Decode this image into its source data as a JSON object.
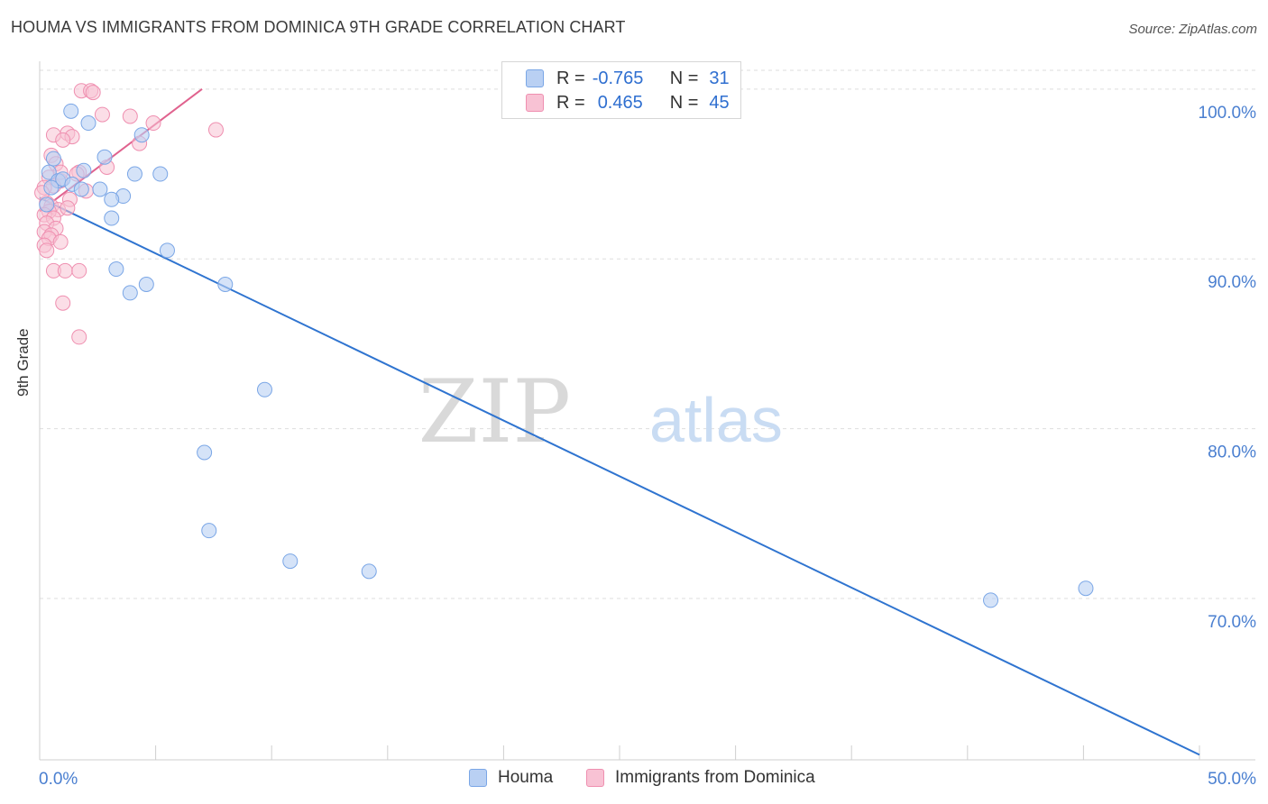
{
  "title": "HOUMA VS IMMIGRANTS FROM DOMINICA 9TH GRADE CORRELATION CHART",
  "source": "Source: ZipAtlas.com",
  "watermark": {
    "zip": "ZIP",
    "atlas": "atlas"
  },
  "legend": {
    "rows": [
      {
        "r_label": "R =",
        "r_value": "-0.765",
        "n_label": "N =",
        "n_value": "31"
      },
      {
        "r_label": "R =",
        "r_value": "0.465",
        "n_label": "N =",
        "n_value": "45"
      }
    ]
  },
  "bottom_legend": {
    "houma": "Houma",
    "dominica": "Immigrants from Dominica"
  },
  "colors": {
    "blue_fill": "#b9d0f3",
    "blue_stroke": "#7aa6e6",
    "blue_line": "#2f74d0",
    "pink_fill": "#f8c2d4",
    "pink_stroke": "#ef8fb0",
    "pink_line": "#e0628e",
    "tick_label": "#4a7fd0",
    "grid": "#dedede"
  },
  "chart_data": {
    "type": "scatter",
    "title": "HOUMA VS IMMIGRANTS FROM DOMINICA 9TH GRADE CORRELATION CHART",
    "xlabel": "",
    "ylabel": "9th Grade",
    "xlim": [
      0,
      50
    ],
    "ylim": [
      60.5,
      101
    ],
    "x_tick_labels": [
      "0.0%",
      "50.0%"
    ],
    "y_ticks": [
      70,
      80,
      90,
      100
    ],
    "y_tick_labels": [
      "70.0%",
      "80.0%",
      "90.0%",
      "100.0%"
    ],
    "grid": true,
    "series": [
      {
        "name": "Houma",
        "r": -0.765,
        "n": 31,
        "points": [
          [
            1.35,
            98.7
          ],
          [
            2.1,
            98.0
          ],
          [
            4.4,
            97.3
          ],
          [
            2.8,
            96.0
          ],
          [
            0.6,
            95.9
          ],
          [
            1.9,
            95.2
          ],
          [
            4.1,
            95.0
          ],
          [
            5.2,
            95.0
          ],
          [
            0.4,
            95.1
          ],
          [
            0.8,
            94.6
          ],
          [
            1.0,
            94.7
          ],
          [
            1.4,
            94.4
          ],
          [
            1.8,
            94.1
          ],
          [
            2.6,
            94.1
          ],
          [
            3.6,
            93.7
          ],
          [
            3.1,
            93.5
          ],
          [
            0.3,
            93.2
          ],
          [
            3.1,
            92.4
          ],
          [
            5.5,
            90.5
          ],
          [
            3.3,
            89.4
          ],
          [
            4.6,
            88.5
          ],
          [
            3.9,
            88.0
          ],
          [
            8.0,
            88.5
          ],
          [
            9.7,
            82.3
          ],
          [
            7.1,
            78.6
          ],
          [
            7.3,
            74.0
          ],
          [
            10.8,
            72.2
          ],
          [
            14.2,
            71.6
          ],
          [
            41.0,
            69.9
          ],
          [
            45.1,
            70.6
          ],
          [
            0.5,
            94.2
          ]
        ],
        "trend": {
          "x": [
            0,
            50
          ],
          "y": [
            93.6,
            60.8
          ]
        }
      },
      {
        "name": "Immigrants from Dominica",
        "r": 0.465,
        "n": 45,
        "points": [
          [
            1.8,
            99.9
          ],
          [
            2.2,
            99.9
          ],
          [
            2.3,
            99.8
          ],
          [
            2.7,
            98.5
          ],
          [
            3.9,
            98.4
          ],
          [
            4.9,
            98.0
          ],
          [
            7.6,
            97.6
          ],
          [
            0.6,
            97.3
          ],
          [
            1.2,
            97.4
          ],
          [
            1.4,
            97.2
          ],
          [
            1.0,
            97.0
          ],
          [
            4.3,
            96.8
          ],
          [
            0.5,
            96.1
          ],
          [
            0.7,
            95.6
          ],
          [
            2.9,
            95.4
          ],
          [
            1.7,
            95.1
          ],
          [
            0.4,
            94.8
          ],
          [
            0.9,
            94.6
          ],
          [
            0.6,
            94.3
          ],
          [
            0.2,
            94.2
          ],
          [
            2.0,
            94.0
          ],
          [
            1.3,
            93.5
          ],
          [
            0.3,
            93.3
          ],
          [
            0.5,
            93.1
          ],
          [
            0.8,
            92.9
          ],
          [
            0.4,
            92.8
          ],
          [
            0.2,
            92.6
          ],
          [
            0.6,
            92.4
          ],
          [
            0.3,
            92.1
          ],
          [
            0.7,
            91.8
          ],
          [
            0.2,
            91.6
          ],
          [
            0.5,
            91.4
          ],
          [
            0.4,
            91.2
          ],
          [
            0.9,
            91.0
          ],
          [
            0.2,
            90.8
          ],
          [
            0.3,
            90.5
          ],
          [
            0.6,
            89.3
          ],
          [
            1.1,
            89.3
          ],
          [
            1.7,
            89.3
          ],
          [
            1.0,
            87.4
          ],
          [
            1.7,
            85.4
          ],
          [
            1.6,
            95.0
          ],
          [
            0.9,
            95.1
          ],
          [
            1.2,
            93.0
          ],
          [
            0.1,
            93.9
          ]
        ],
        "trend": {
          "x": [
            0,
            7.0
          ],
          "y": [
            92.8,
            100.0
          ]
        }
      }
    ]
  }
}
